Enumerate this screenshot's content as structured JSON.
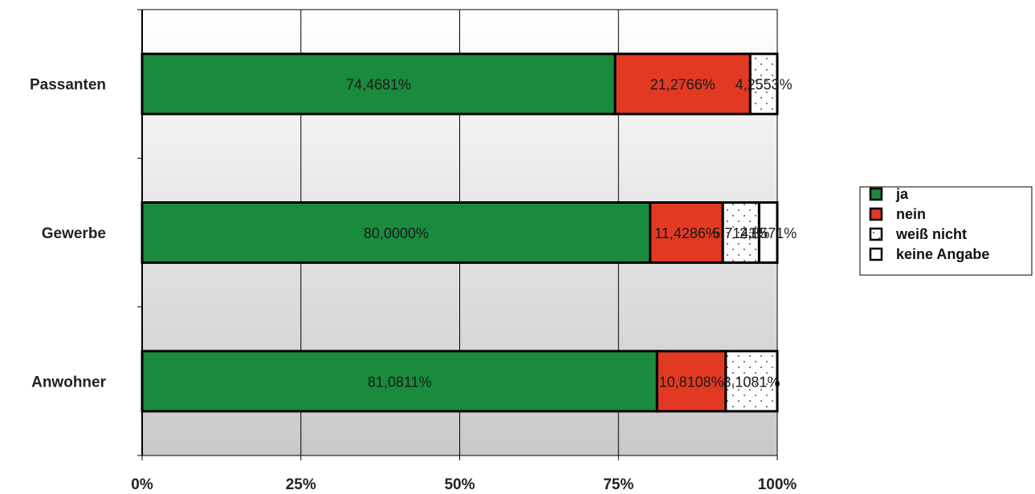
{
  "chart_data": {
    "type": "bar",
    "orientation": "horizontal",
    "stacked": "percent",
    "categories": [
      "Passanten",
      "Gewerbe",
      "Anwohner"
    ],
    "series": [
      {
        "name": "ja",
        "color": "#1a8a3c",
        "pattern": "solid",
        "values": [
          74.4681,
          80.0,
          81.0811
        ],
        "labels": [
          "74,4681%",
          "80,0000%",
          "81,0811%"
        ]
      },
      {
        "name": "nein",
        "color": "#e23a22",
        "pattern": "solid",
        "values": [
          21.2766,
          11.4286,
          10.8108
        ],
        "labels": [
          "21,2766%",
          "11,4286%",
          "10,8108%"
        ]
      },
      {
        "name": "weiß nicht",
        "color": "#ffffff",
        "pattern": "dotted",
        "values": [
          4.2553,
          5.7143,
          8.1081
        ],
        "labels": [
          "4,2553%",
          "5,7143%",
          "8,1081%"
        ]
      },
      {
        "name": "keine Angabe",
        "color": "#ffffff",
        "pattern": "solid",
        "values": [
          0,
          2.8571,
          0
        ],
        "labels": [
          "",
          "2,8571%",
          ""
        ]
      }
    ],
    "x_ticks": [
      "0%",
      "25%",
      "50%",
      "75%",
      "100%"
    ],
    "xlim": [
      0,
      100
    ],
    "grid": true,
    "legend": "right",
    "title": "",
    "xlabel": "",
    "ylabel": ""
  }
}
